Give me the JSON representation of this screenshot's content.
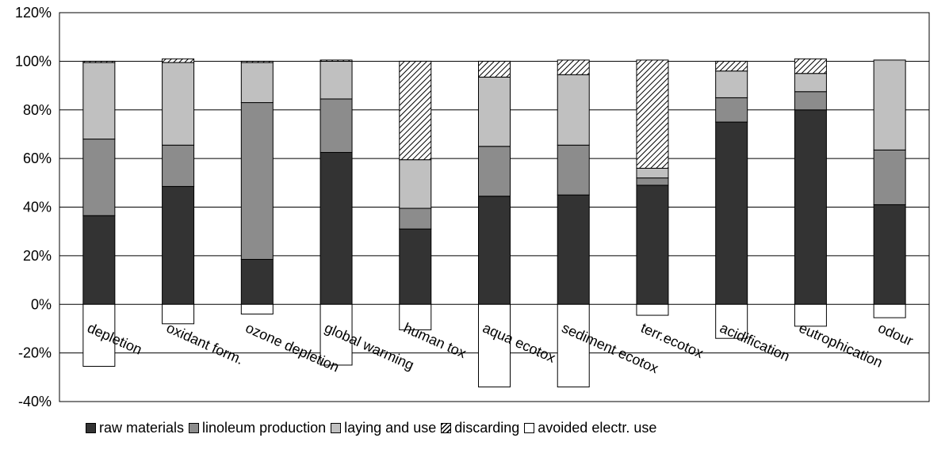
{
  "chart_data": {
    "type": "bar",
    "stacked": true,
    "title": "",
    "xlabel": "",
    "ylabel": "",
    "ylim": [
      -40,
      120
    ],
    "yticks": [
      "120%",
      "100%",
      "80%",
      "60%",
      "40%",
      "20%",
      "0%",
      "-20%",
      "-40%"
    ],
    "grid": true,
    "legend_position": "bottom",
    "categories": [
      "depletion",
      "oxidant form.",
      "ozone depletion",
      "global warming",
      "human tox",
      "aqua ecotox",
      "sediment ecotox",
      "terr.ecotox",
      "acidification",
      "eutrophication",
      "odour"
    ],
    "series": [
      {
        "name": "raw materials",
        "color": "#333333",
        "pattern": "solid",
        "values": [
          36.5,
          48.5,
          18.5,
          62.5,
          31,
          44.5,
          45,
          49,
          75,
          80,
          41
        ]
      },
      {
        "name": "linoleum production",
        "color": "#8c8c8c",
        "pattern": "solid",
        "values": [
          31.5,
          17,
          64.5,
          22,
          8.5,
          20.5,
          20.5,
          3,
          10,
          7.5,
          22.5
        ]
      },
      {
        "name": "laying and use",
        "color": "#c0c0c0",
        "pattern": "solid",
        "values": [
          31.5,
          34,
          16.5,
          15.5,
          20,
          28.5,
          29,
          4,
          11,
          7.5,
          37
        ]
      },
      {
        "name": "discarding",
        "color": "#ffffff",
        "pattern": "hatch",
        "values": [
          0.5,
          1.5,
          0.5,
          0.5,
          40.5,
          6.5,
          6,
          44.5,
          4,
          6,
          0
        ]
      },
      {
        "name": "avoided electr. use",
        "color": "#ffffff",
        "pattern": "solid",
        "values": [
          -25.5,
          -8,
          -4,
          -25,
          -10.5,
          -34,
          -34,
          -4.5,
          -14,
          -9,
          -5.5
        ]
      }
    ]
  }
}
